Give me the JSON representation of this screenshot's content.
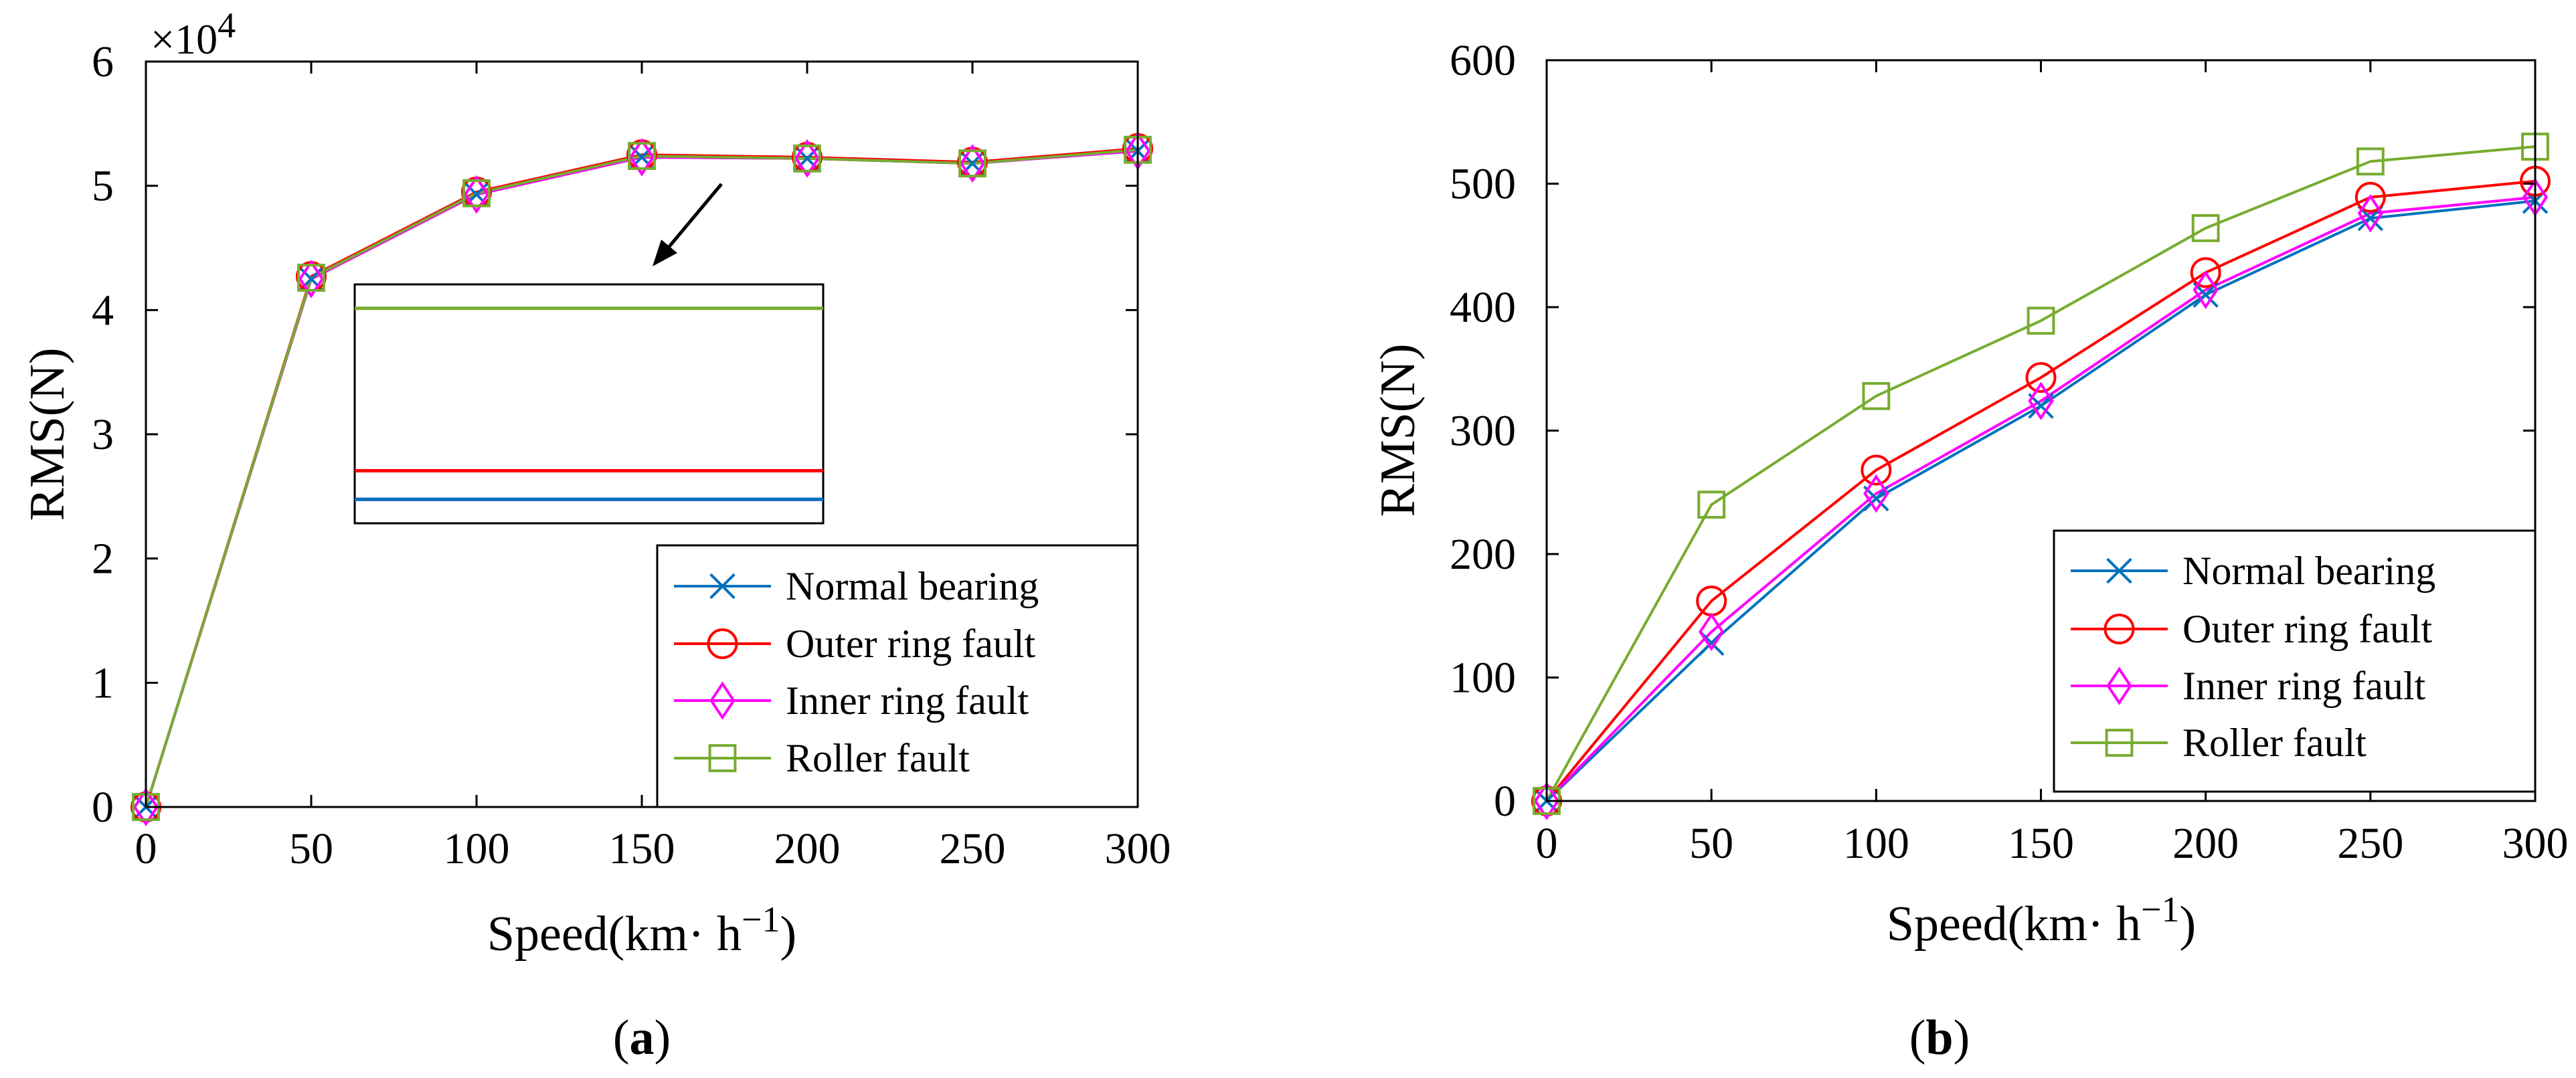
{
  "chart_data": [
    {
      "id": "a",
      "type": "line",
      "caption": "(a)",
      "caption_parts": [
        "(",
        "a",
        ")"
      ],
      "title": "",
      "xlabel": "Speed(km· h",
      "xlabel_sup": "−1",
      "xlabel_close": ")",
      "ylabel": "RMS(N)",
      "y_multiplier": "×10",
      "y_multiplier_exp": "4",
      "x": [
        0,
        50,
        100,
        150,
        200,
        250,
        300
      ],
      "xlim": [
        0,
        300
      ],
      "ylim": [
        0,
        6
      ],
      "xticks": [
        "0",
        "50",
        "100",
        "150",
        "200",
        "250",
        "300"
      ],
      "yticks": [
        "0",
        "1",
        "2",
        "3",
        "4",
        "5",
        "6"
      ],
      "grid": false,
      "legend_position": "bottom-right",
      "inset": {
        "note": "zoomed view near x = 150",
        "line_order_top_to_bottom": [
          "Roller fault",
          "Outer ring fault",
          "Inner ring fault",
          "Normal bearing"
        ],
        "rel_levels": [
          0.1,
          0.78,
          0.9,
          0.9
        ]
      },
      "series": [
        {
          "name": "Normal bearing",
          "color": "#0072BD",
          "marker": "x",
          "values": [
            0,
            4.25,
            4.93,
            5.23,
            5.22,
            5.18,
            5.28
          ]
        },
        {
          "name": "Outer ring fault",
          "color": "#FF0000",
          "marker": "circle",
          "values": [
            0,
            4.27,
            4.95,
            5.25,
            5.23,
            5.19,
            5.3
          ]
        },
        {
          "name": "Inner ring fault",
          "color": "#FF00FF",
          "marker": "diamond",
          "values": [
            0,
            4.25,
            4.93,
            5.23,
            5.22,
            5.18,
            5.28
          ]
        },
        {
          "name": "Roller fault",
          "color": "#77AC30",
          "marker": "square",
          "values": [
            0,
            4.26,
            4.94,
            5.24,
            5.22,
            5.18,
            5.29
          ]
        }
      ]
    },
    {
      "id": "b",
      "type": "line",
      "caption": "(b)",
      "caption_parts": [
        "(",
        "b",
        ")"
      ],
      "title": "",
      "xlabel": "Speed(km· h",
      "xlabel_sup": "−1",
      "xlabel_close": ")",
      "ylabel": "RMS(N)",
      "x": [
        0,
        50,
        100,
        150,
        200,
        250,
        300
      ],
      "xlim": [
        0,
        300
      ],
      "ylim": [
        0,
        600
      ],
      "xticks": [
        "0",
        "50",
        "100",
        "150",
        "200",
        "250",
        "300"
      ],
      "yticks": [
        "0",
        "100",
        "200",
        "300",
        "400",
        "500",
        "600"
      ],
      "grid": false,
      "legend_position": "bottom-right",
      "series": [
        {
          "name": "Normal bearing",
          "color": "#0072BD",
          "marker": "x",
          "values": [
            0,
            128,
            245,
            320,
            410,
            472,
            486
          ]
        },
        {
          "name": "Outer ring fault",
          "color": "#FF0000",
          "marker": "circle",
          "values": [
            0,
            162,
            268,
            343,
            428,
            489,
            502
          ]
        },
        {
          "name": "Inner ring fault",
          "color": "#FF00FF",
          "marker": "diamond",
          "values": [
            0,
            137,
            249,
            324,
            414,
            476,
            489
          ]
        },
        {
          "name": "Roller fault",
          "color": "#77AC30",
          "marker": "square",
          "values": [
            0,
            240,
            328,
            389,
            464,
            518,
            530
          ]
        }
      ]
    }
  ]
}
